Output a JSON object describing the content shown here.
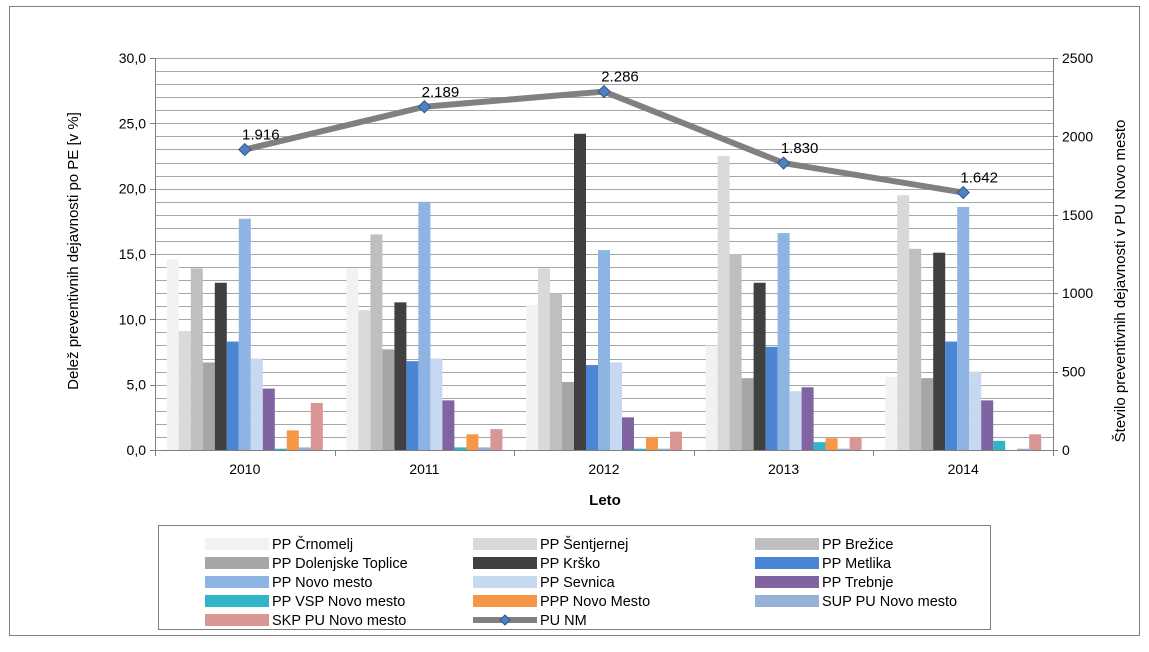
{
  "chart_data": {
    "type": "bar",
    "title": "",
    "xlabel": "Leto",
    "ylabel": "Delež preventivnih dejavnosti po PE [v %]",
    "y2label": "Število preventivnih dejavnosti v PU Novo mesto",
    "categories": [
      "2010",
      "2011",
      "2012",
      "2013",
      "2014"
    ],
    "ylim": [
      0,
      30
    ],
    "yticks": [
      "0,0",
      "5,0",
      "10,0",
      "15,0",
      "20,0",
      "25,0",
      "30,0"
    ],
    "y2lim": [
      0,
      2500
    ],
    "y2ticks": [
      "0",
      "500",
      "1000",
      "1500",
      "2000",
      "2500"
    ],
    "grid": true,
    "legend_position": "bottom",
    "series": [
      {
        "name": "PP Črnomelj",
        "color": "#f2f2f2",
        "values": [
          14.6,
          13.9,
          11.1,
          8.0,
          5.6
        ]
      },
      {
        "name": "PP Šentjernej",
        "color": "#d9d9d9",
        "values": [
          9.1,
          10.7,
          13.9,
          22.5,
          19.5
        ]
      },
      {
        "name": "PP Brežice",
        "color": "#bfbfbf",
        "values": [
          13.9,
          16.5,
          12.0,
          15.0,
          15.4
        ]
      },
      {
        "name": "PP Dolenjske Toplice",
        "color": "#a6a6a6",
        "values": [
          6.7,
          7.7,
          5.2,
          5.5,
          5.5
        ]
      },
      {
        "name": "PP Krško",
        "color": "#404040",
        "values": [
          12.8,
          11.3,
          24.2,
          12.8,
          15.1
        ]
      },
      {
        "name": "PP Metlika",
        "color": "#4a86d4",
        "values": [
          8.3,
          6.8,
          6.5,
          7.9,
          8.3
        ]
      },
      {
        "name": "PP Novo mesto",
        "color": "#8eb4e3",
        "values": [
          17.7,
          19.0,
          15.3,
          16.6,
          18.6
        ]
      },
      {
        "name": "PP Sevnica",
        "color": "#c6d9f1",
        "values": [
          7.0,
          7.0,
          6.7,
          4.5,
          6.0
        ]
      },
      {
        "name": "PP Trebnje",
        "color": "#8064a2",
        "values": [
          4.7,
          3.8,
          2.5,
          4.8,
          3.8
        ]
      },
      {
        "name": "PP VSP Novo mesto",
        "color": "#31b4c6",
        "values": [
          0.1,
          0.2,
          0.1,
          0.6,
          0.7
        ]
      },
      {
        "name": "PPP Novo Mesto",
        "color": "#f79646",
        "values": [
          1.5,
          1.2,
          1.0,
          0.9,
          0.0
        ]
      },
      {
        "name": "SUP PU Novo mesto",
        "color": "#95b3d7",
        "values": [
          0.2,
          0.2,
          0.1,
          0.1,
          0.1
        ]
      },
      {
        "name": "SKP PU Novo mesto",
        "color": "#d99694",
        "values": [
          3.6,
          1.6,
          1.4,
          1.0,
          1.2
        ]
      }
    ],
    "line_series": {
      "name": "PU NM",
      "color": "#808080",
      "marker_color": "#4f81bd",
      "axis": "right",
      "values": [
        1916,
        2189,
        2286,
        1830,
        1642
      ],
      "labels": [
        "1.916",
        "2.189",
        "2.286",
        "1.830",
        "1.642"
      ]
    }
  }
}
